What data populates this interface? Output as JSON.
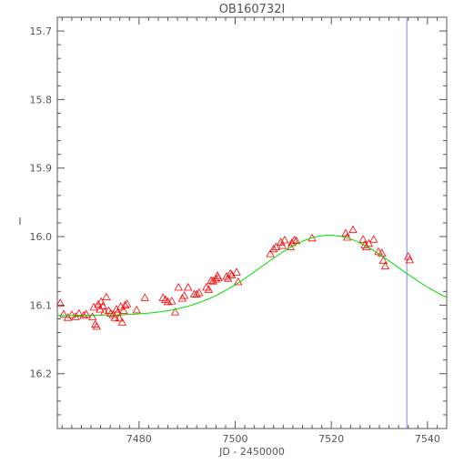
{
  "chart_data": {
    "type": "scatter",
    "title": "OB160732I",
    "xlabel": "JD - 2450000",
    "ylabel": "I",
    "xlim": [
      7463,
      7544
    ],
    "ylim": [
      16.28,
      15.68
    ],
    "y_inverted": true,
    "grid": false,
    "x_major_ticks": [
      7480,
      7500,
      7520,
      7540
    ],
    "x_minor_step": 2,
    "y_major_ticks": [
      15.7,
      15.8,
      15.9,
      16.0,
      16.1,
      16.2
    ],
    "y_minor_step": 0.02,
    "x_tick_labels": [
      "7480",
      "7500",
      "7520",
      "7540"
    ],
    "y_tick_labels": [
      "15.7",
      "15.8",
      "15.9",
      "16.0",
      "16.1",
      "16.2"
    ],
    "series": [
      {
        "type": "scatter",
        "marker": "triangle-open",
        "color": "#ff0000",
        "points": [
          [
            7463.6,
            16.097
          ],
          [
            7464.3,
            16.113
          ],
          [
            7465.2,
            16.118
          ],
          [
            7466.0,
            16.114
          ],
          [
            7466.8,
            16.117
          ],
          [
            7467.5,
            16.112
          ],
          [
            7468.5,
            16.115
          ],
          [
            7469.0,
            16.113
          ],
          [
            7470.3,
            16.117
          ],
          [
            7470.6,
            16.103
          ],
          [
            7470.9,
            16.128
          ],
          [
            7471.2,
            16.131
          ],
          [
            7471.5,
            16.099
          ],
          [
            7471.9,
            16.106
          ],
          [
            7472.1,
            16.095
          ],
          [
            7472.5,
            16.101
          ],
          [
            7472.8,
            16.11
          ],
          [
            7473.2,
            16.088
          ],
          [
            7473.7,
            16.108
          ],
          [
            7474.1,
            16.112
          ],
          [
            7474.6,
            16.114
          ],
          [
            7475.0,
            16.118
          ],
          [
            7475.3,
            16.106
          ],
          [
            7475.5,
            16.111
          ],
          [
            7475.9,
            16.119
          ],
          [
            7476.2,
            16.102
          ],
          [
            7476.5,
            16.125
          ],
          [
            7476.8,
            16.108
          ],
          [
            7477.1,
            16.1
          ],
          [
            7477.5,
            16.098
          ],
          [
            7479.5,
            16.107
          ],
          [
            7481.2,
            16.089
          ],
          [
            7485.0,
            16.089
          ],
          [
            7485.5,
            16.092
          ],
          [
            7486.0,
            16.095
          ],
          [
            7486.8,
            16.094
          ],
          [
            7487.5,
            16.11
          ],
          [
            7488.2,
            16.074
          ],
          [
            7489.0,
            16.09
          ],
          [
            7489.4,
            16.086
          ],
          [
            7490.2,
            16.074
          ],
          [
            7491.5,
            16.084
          ],
          [
            7492.0,
            16.084
          ],
          [
            7492.5,
            16.082
          ],
          [
            7494.0,
            16.074
          ],
          [
            7494.5,
            16.077
          ],
          [
            7495.0,
            16.064
          ],
          [
            7495.4,
            16.065
          ],
          [
            7496.0,
            16.062
          ],
          [
            7496.3,
            16.057
          ],
          [
            7496.5,
            16.06
          ],
          [
            7498.2,
            16.058
          ],
          [
            7498.5,
            16.061
          ],
          [
            7499.0,
            16.054
          ],
          [
            7499.3,
            16.056
          ],
          [
            7500.3,
            16.052
          ],
          [
            7500.6,
            16.066
          ],
          [
            7507.3,
            16.025
          ],
          [
            7508.0,
            16.018
          ],
          [
            7508.5,
            16.015
          ],
          [
            7509.5,
            16.008
          ],
          [
            7509.8,
            16.013
          ],
          [
            7510.3,
            16.005
          ],
          [
            7511.5,
            16.015
          ],
          [
            7511.8,
            16.009
          ],
          [
            7512.3,
            16.005
          ],
          [
            7512.7,
            16.006
          ],
          [
            7516.0,
            16.002
          ],
          [
            7523.0,
            15.995
          ],
          [
            7523.3,
            16.001
          ],
          [
            7524.5,
            15.99
          ],
          [
            7526.6,
            16.004
          ],
          [
            7527.0,
            16.012
          ],
          [
            7527.3,
            16.015
          ],
          [
            7527.8,
            16.01
          ],
          [
            7528.8,
            16.004
          ],
          [
            7529.8,
            16.022
          ],
          [
            7530.5,
            16.024
          ],
          [
            7530.8,
            16.035
          ],
          [
            7531.2,
            16.043
          ],
          [
            7536.0,
            16.029
          ],
          [
            7536.3,
            16.034
          ]
        ]
      },
      {
        "type": "line",
        "color": "#00dd00",
        "model": {
          "t0": 7519.6,
          "tE": 20.0,
          "baseline": 16.115,
          "peak": 15.998
        },
        "x_range": [
          7463,
          7544
        ]
      }
    ],
    "reference_lines": [
      {
        "type": "vline",
        "x": 7535.7,
        "color": "#8080ff"
      }
    ]
  }
}
